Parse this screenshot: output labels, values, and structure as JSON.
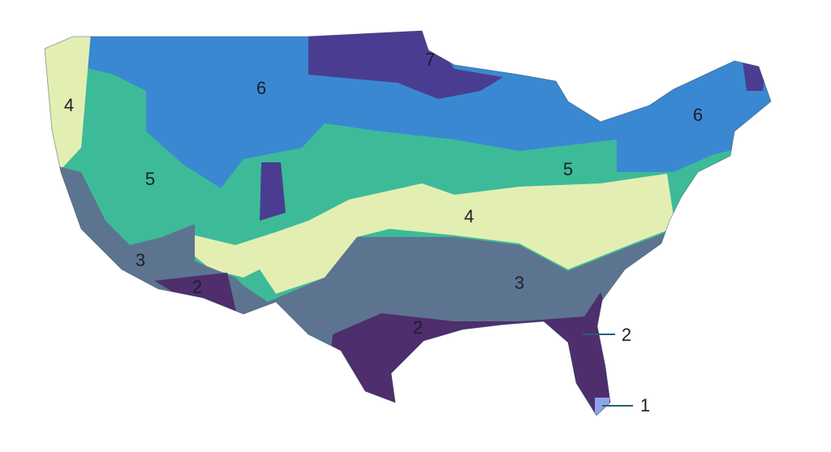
{
  "zone_labels": [
    "7",
    "6",
    "6",
    "4",
    "5",
    "5",
    "4",
    "3",
    "3",
    "2",
    "2",
    "2",
    "1"
  ]
}
